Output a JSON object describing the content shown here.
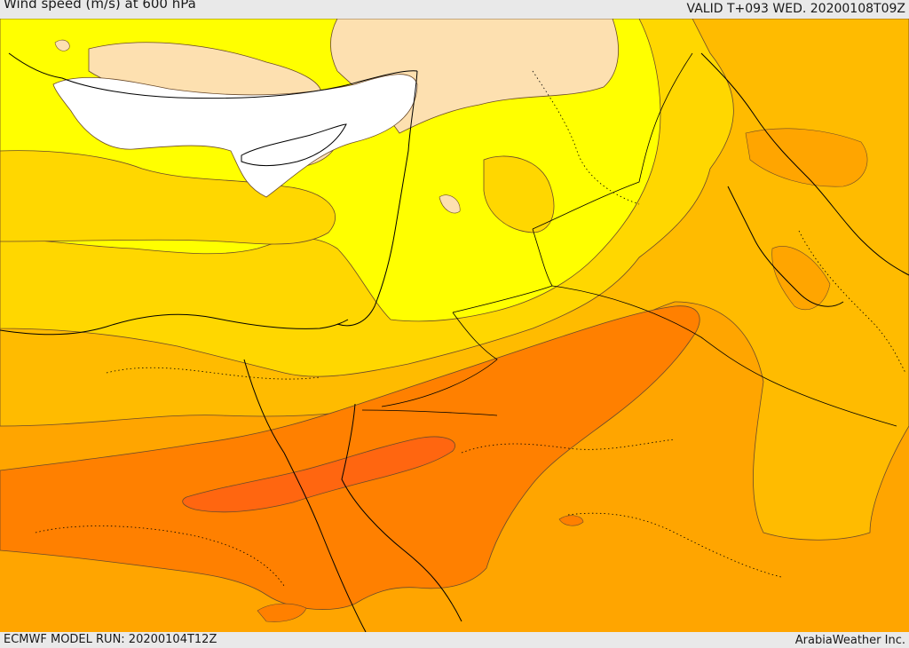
{
  "header": {
    "title": "Wind speed (m/s) at 600 hPa",
    "valid": "VALID T+093 WED. 20200108T09Z"
  },
  "footer": {
    "model_run": "ECMWF MODEL RUN: 20200104T12Z",
    "credit": "ArabiaWeather Inc."
  },
  "palette": {
    "white": "#ffffff",
    "peach": "#fde0b0",
    "yellow": "#ffff00",
    "gold": "#ffd700",
    "amber": "#ffbb00",
    "orange": "#ffa500",
    "dark_orange": "#ff8000",
    "red_orange": "#ff6610",
    "contour": "#6b4a2a",
    "coast": "#000000"
  }
}
